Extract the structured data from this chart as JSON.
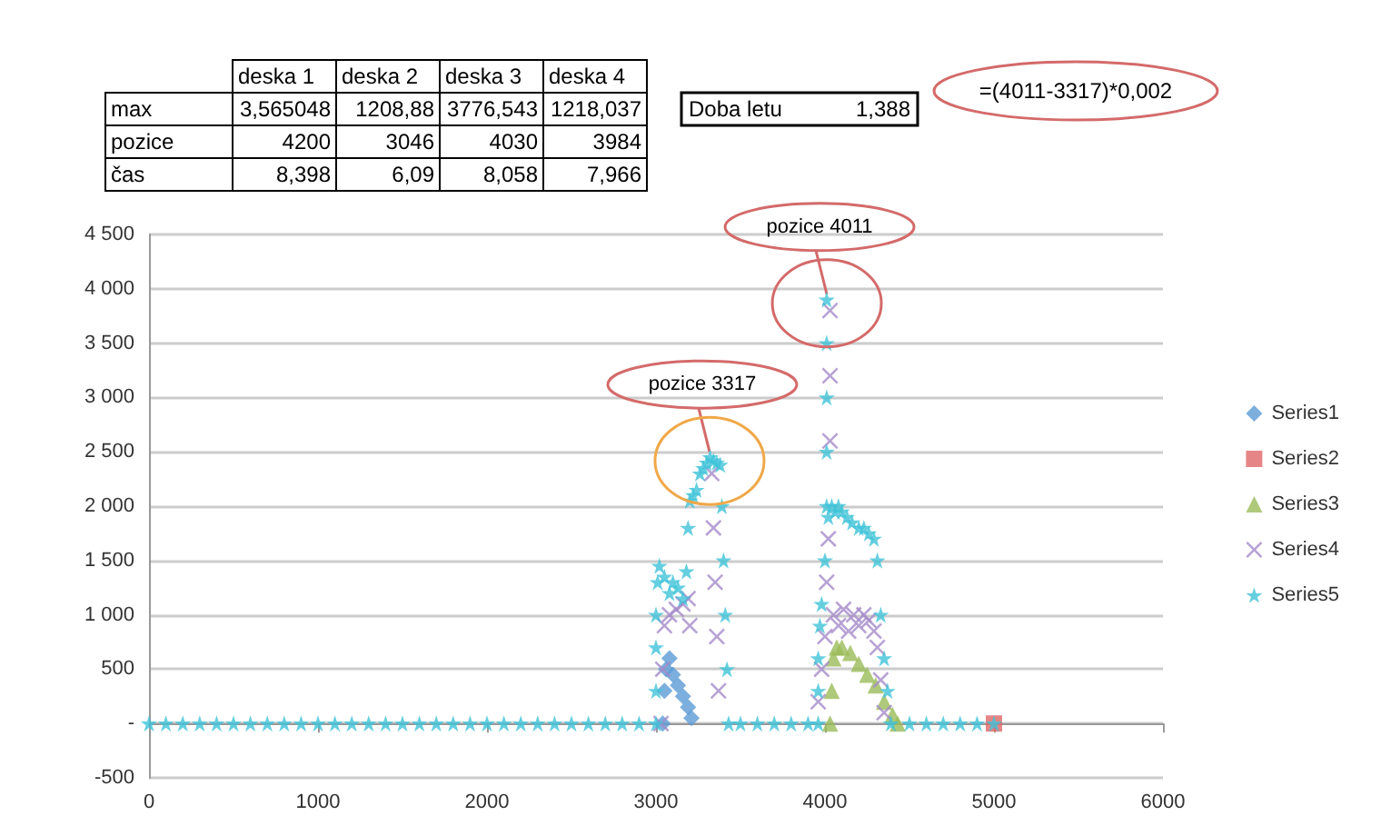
{
  "chart_data": [
    {
      "type": "other",
      "annotations": [
        "deska 1",
        "deska 2",
        "deska 3",
        "deska 4",
        "max",
        "3,565048",
        "1208,88",
        "3776,543",
        "1218,037",
        "pozice",
        "4200",
        "3046",
        "4030",
        "3984",
        "čas",
        "8,398",
        "6,09",
        "8,058",
        "7,966",
        "Doba letu",
        "1,388",
        "=(4011-3317)*0,002"
      ]
    },
    {
      "type": "scatter",
      "xlim": [
        0,
        6000
      ],
      "xticks": [
        0,
        1000,
        2000,
        3000,
        4000,
        5000,
        6000
      ],
      "ylim": [
        -500,
        4500
      ],
      "yticks": [
        {
          "value": -500,
          "label": "-500"
        },
        {
          "value": 0,
          "label": "-"
        },
        {
          "value": 500,
          "label": "500"
        },
        {
          "value": 1000,
          "label": "1 000"
        },
        {
          "value": 1500,
          "label": "1 500"
        },
        {
          "value": 2000,
          "label": "2 000"
        },
        {
          "value": 2500,
          "label": "2 500"
        },
        {
          "value": 3000,
          "label": "3 000"
        },
        {
          "value": 3500,
          "label": "3 500"
        },
        {
          "value": 4000,
          "label": "4 000"
        },
        {
          "value": 4500,
          "label": "4 500"
        }
      ],
      "grid": "y",
      "legend": "right",
      "annotations": [
        {
          "text": "pozice 3317",
          "x": 3317,
          "y": 2450
        },
        {
          "text": "pozice 4011",
          "x": 4011,
          "y": 3900
        }
      ],
      "series": [
        {
          "name": "Series1",
          "color": "#5b9bd5",
          "marker": "diamond",
          "x": [
            3040,
            3050,
            3060,
            3080,
            3100,
            3130,
            3160,
            3190,
            3210
          ],
          "values": [
            0,
            300,
            500,
            600,
            450,
            350,
            250,
            150,
            50
          ]
        },
        {
          "name": "Series2",
          "color": "#e06666",
          "marker": "square",
          "x": [
            5000
          ],
          "values": [
            0
          ]
        },
        {
          "name": "Series3",
          "color": "#9bbb59",
          "marker": "triangle",
          "x": [
            4030,
            4040,
            4050,
            4070,
            4100,
            4150,
            4200,
            4250,
            4300,
            4350,
            4400,
            4430
          ],
          "values": [
            0,
            300,
            600,
            700,
            700,
            650,
            550,
            450,
            350,
            200,
            80,
            0
          ]
        },
        {
          "name": "Series4",
          "color": "#a58bc9",
          "marker": "cross",
          "x": [
            3030,
            3040,
            3050,
            3080,
            3120,
            3160,
            3190,
            3200,
            3330,
            3340,
            3350,
            3360,
            3370,
            3960,
            3980,
            4000,
            4010,
            4020,
            4030,
            4030,
            4030,
            4050,
            4080,
            4110,
            4140,
            4170,
            4200,
            4230,
            4260,
            4290,
            4310,
            4330,
            4350
          ],
          "values": [
            0,
            500,
            900,
            1000,
            1050,
            1100,
            1150,
            900,
            2300,
            1800,
            1300,
            800,
            300,
            200,
            500,
            800,
            1300,
            1700,
            2600,
            3200,
            3800,
            1000,
            900,
            1050,
            850,
            1000,
            900,
            1000,
            950,
            850,
            700,
            400,
            100
          ]
        },
        {
          "name": "Series5",
          "color": "#3ec3d8",
          "marker": "star",
          "x": [
            0,
            100,
            200,
            300,
            400,
            500,
            600,
            700,
            800,
            900,
            1000,
            1100,
            1200,
            1300,
            1400,
            1500,
            1600,
            1700,
            1800,
            1900,
            2000,
            2100,
            2200,
            2300,
            2400,
            2500,
            2600,
            2700,
            2800,
            2900,
            3000,
            3000,
            3000,
            3000,
            3010,
            3020,
            3050,
            3080,
            3100,
            3130,
            3160,
            3180,
            3190,
            3200,
            3220,
            3240,
            3260,
            3280,
            3300,
            3320,
            3340,
            3360,
            3380,
            3390,
            3400,
            3410,
            3420,
            3430,
            3500,
            3600,
            3700,
            3800,
            3900,
            3960,
            3960,
            3960,
            3970,
            3980,
            4000,
            4010,
            4010,
            4010,
            4010,
            4010,
            4020,
            4040,
            4060,
            4080,
            4100,
            4130,
            4160,
            4200,
            4230,
            4260,
            4290,
            4310,
            4330,
            4350,
            4370,
            4390,
            4500,
            4600,
            4700,
            4800,
            4900,
            5000
          ],
          "values": [
            0,
            0,
            0,
            0,
            0,
            0,
            0,
            0,
            0,
            0,
            0,
            0,
            0,
            0,
            0,
            0,
            0,
            0,
            0,
            0,
            0,
            0,
            0,
            0,
            0,
            0,
            0,
            0,
            0,
            0,
            0,
            300,
            700,
            1000,
            1300,
            1450,
            1350,
            1200,
            1300,
            1250,
            1150,
            1400,
            1800,
            2050,
            2100,
            2150,
            2300,
            2350,
            2400,
            2450,
            2420,
            2400,
            2380,
            2000,
            1500,
            1000,
            500,
            0,
            0,
            0,
            0,
            0,
            0,
            0,
            300,
            600,
            900,
            1100,
            1500,
            2000,
            2500,
            3000,
            3500,
            3900,
            1900,
            2000,
            1950,
            2000,
            1950,
            1900,
            1850,
            1800,
            1800,
            1750,
            1700,
            1500,
            1000,
            600,
            300,
            0,
            0,
            0,
            0,
            0,
            0,
            0
          ]
        }
      ]
    }
  ]
}
